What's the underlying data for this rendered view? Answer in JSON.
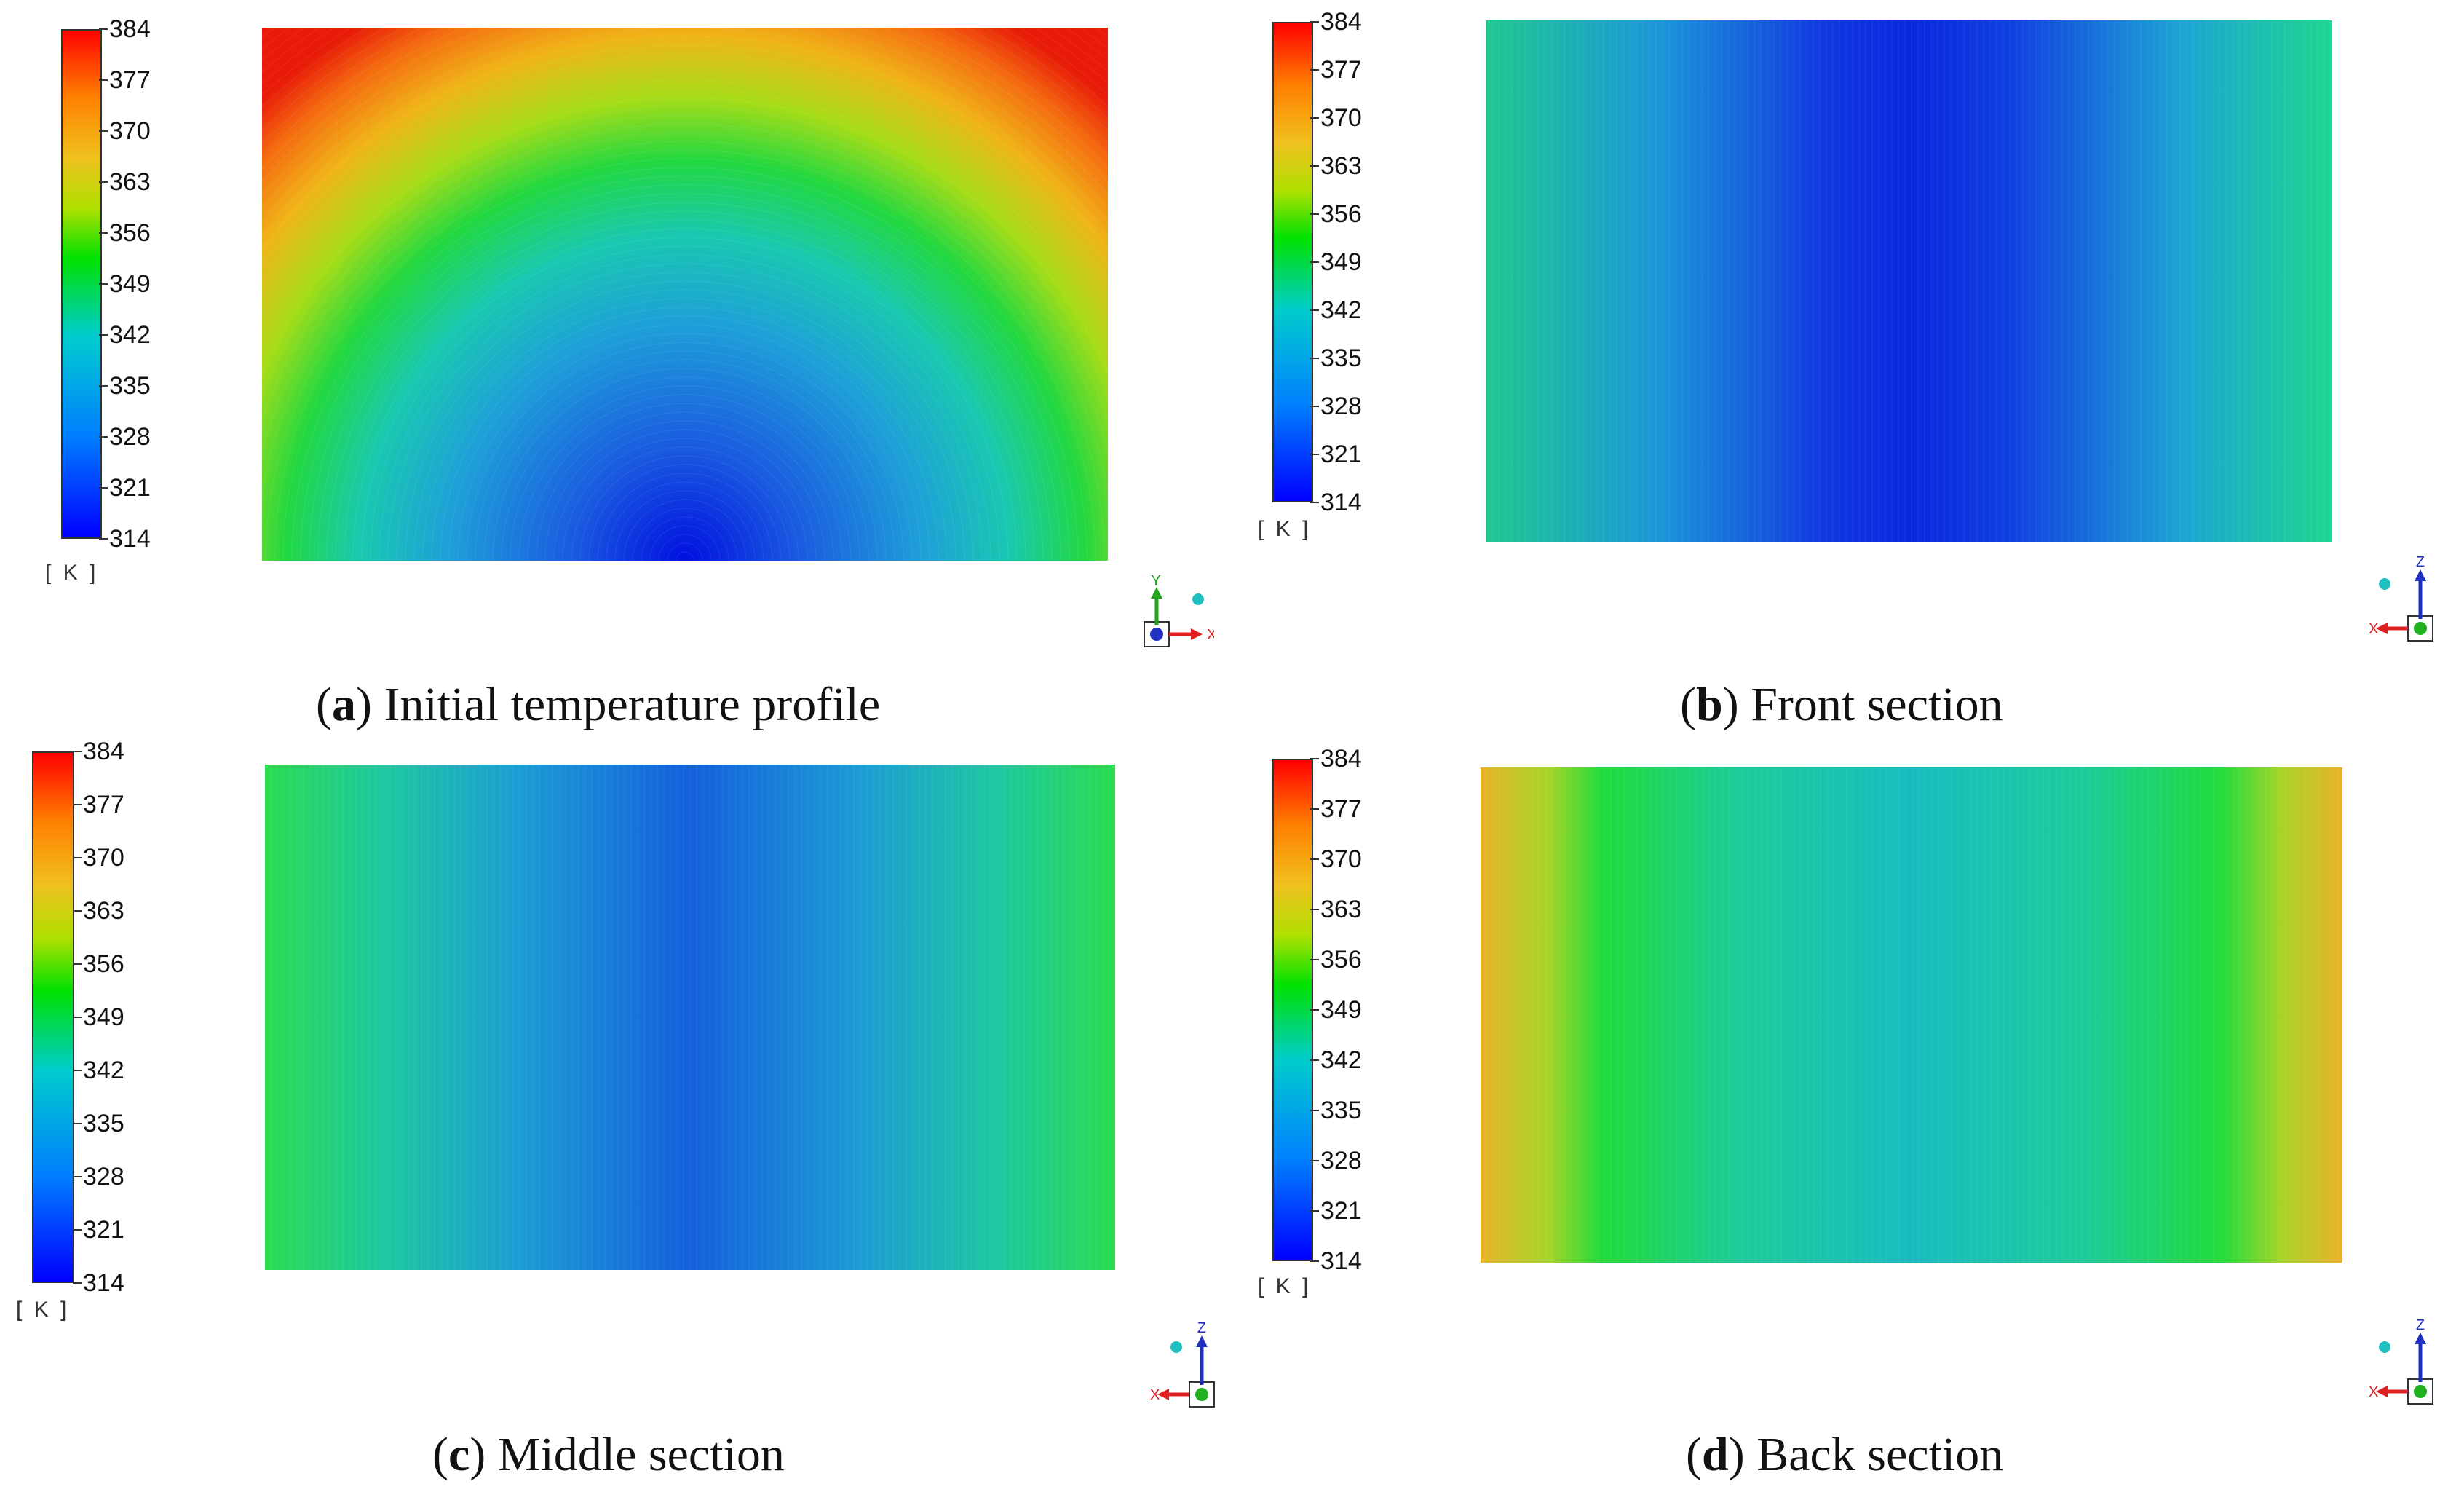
{
  "colorbar": {
    "ticks": [
      "384",
      "377",
      "370",
      "363",
      "356",
      "349",
      "342",
      "335",
      "328",
      "321",
      "314"
    ],
    "unit": "[ K ]",
    "min": 314,
    "max": 384
  },
  "panels": [
    {
      "letter": "a",
      "title": " Initial temperature profile",
      "pattern": "radial",
      "axes": {
        "up": "Y",
        "side": "X"
      }
    },
    {
      "letter": "b",
      "title": " Front section",
      "pattern": "vertical_cool",
      "axes": {
        "up": "Z",
        "side": "X"
      }
    },
    {
      "letter": "c",
      "title": " Middle section",
      "pattern": "vertical_mid",
      "axes": {
        "up": "Z",
        "side": "X"
      }
    },
    {
      "letter": "d",
      "title": " Back section",
      "pattern": "vertical_warm",
      "axes": {
        "up": "Z",
        "side": "X"
      }
    }
  ],
  "chart_data": [
    {
      "type": "heatmap",
      "colorbar_range": [
        314,
        384
      ],
      "colorbar_ticks": [
        384,
        377,
        370,
        363,
        356,
        349,
        342,
        335,
        328,
        321,
        314
      ],
      "unit": "K",
      "title": "(a) Initial temperature profile",
      "pattern": "concentric arcs, hottest at top corners (~384), coolest at bottom center (~314)"
    },
    {
      "type": "heatmap",
      "colorbar_range": [
        314,
        384
      ],
      "colorbar_ticks": [
        384,
        377,
        370,
        363,
        356,
        349,
        342,
        335,
        328,
        321,
        314
      ],
      "unit": "K",
      "title": "(b) Front section",
      "pattern": "vertical bands, edges ~340, center ~318"
    },
    {
      "type": "heatmap",
      "colorbar_range": [
        314,
        384
      ],
      "colorbar_ticks": [
        384,
        377,
        370,
        363,
        356,
        349,
        342,
        335,
        328,
        321,
        314
      ],
      "unit": "K",
      "title": "(c) Middle section",
      "pattern": "vertical bands, edges ~347, center ~325"
    },
    {
      "type": "heatmap",
      "colorbar_range": [
        314,
        384
      ],
      "colorbar_ticks": [
        384,
        377,
        370,
        363,
        356,
        349,
        342,
        335,
        328,
        321,
        314
      ],
      "unit": "K",
      "title": "(d) Back section",
      "pattern": "vertical bands, edges ~362, center ~336"
    }
  ]
}
